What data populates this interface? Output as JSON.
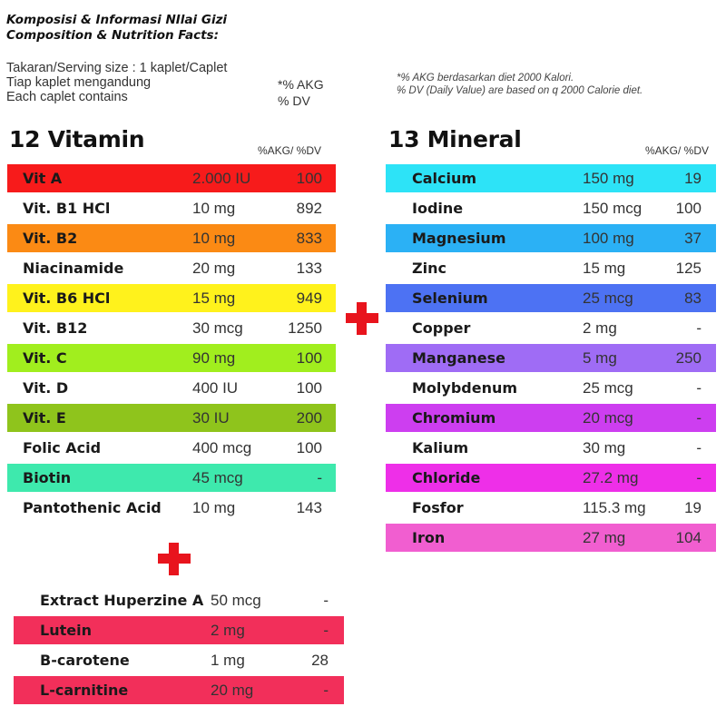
{
  "header": {
    "title_line1": "Komposisi & Informasi NIlai Gizi",
    "title_line2": "Composition & Nutrition Facts:"
  },
  "serving": {
    "line1": "Takaran/Serving size : 1 kaplet/Caplet",
    "line2": "Tiap kaplet mengandung",
    "line3": "Each caplet contains",
    "akg_label": "*% AKG",
    "dv_label": "% DV"
  },
  "footnote": {
    "line1": "*% AKG berdasarkan diet 2000 Kalori.",
    "line2": "% DV (Daily Value) are based on q 2000 Calorie diet."
  },
  "vitamins": {
    "title": "12 Vitamin",
    "col_head": "%AKG/ %DV",
    "rows": [
      {
        "name": "Vit A",
        "amount": "2.000 IU",
        "pct": "100",
        "color": "#f71b1b"
      },
      {
        "name": "Vit. B1 HCl",
        "amount": "10 mg",
        "pct": "892",
        "color": ""
      },
      {
        "name": "Vit. B2",
        "amount": "10 mg",
        "pct": "833",
        "color": "#fb8a14"
      },
      {
        "name": "Niacinamide",
        "amount": "20 mg",
        "pct": "133",
        "color": ""
      },
      {
        "name": "Vit. B6 HCl",
        "amount": "15 mg",
        "pct": "949",
        "color": "#fff21c"
      },
      {
        "name": "Vit. B12",
        "amount": "30 mcg",
        "pct": "1250",
        "color": ""
      },
      {
        "name": "Vit. C",
        "amount": "90 mg",
        "pct": "100",
        "color": "#a1ee1e"
      },
      {
        "name": "Vit. D",
        "amount": "400 IU",
        "pct": "100",
        "color": ""
      },
      {
        "name": "Vit. E",
        "amount": "30 IU",
        "pct": "200",
        "color": "#8fc41c"
      },
      {
        "name": "Folic Acid",
        "amount": "400 mcg",
        "pct": "100",
        "color": ""
      },
      {
        "name": "Biotin",
        "amount": "45 mcg",
        "pct": "-",
        "color": "#3ee9ad"
      },
      {
        "name": "Pantothenic Acid",
        "amount": "10 mg",
        "pct": "143",
        "color": ""
      }
    ]
  },
  "minerals": {
    "title": "13 Mineral",
    "col_head": "%AKG/ %DV",
    "rows": [
      {
        "name": "Calcium",
        "amount": "150 mg",
        "pct": "19",
        "color": "#2de3f7"
      },
      {
        "name": "Iodine",
        "amount": "150 mcg",
        "pct": "100",
        "color": ""
      },
      {
        "name": "Magnesium",
        "amount": "100 mg",
        "pct": "37",
        "color": "#2bb1f5"
      },
      {
        "name": "Zinc",
        "amount": "15 mg",
        "pct": "125",
        "color": ""
      },
      {
        "name": "Selenium",
        "amount": "25 mcg",
        "pct": "83",
        "color": "#4d72f3"
      },
      {
        "name": "Copper",
        "amount": "2 mg",
        "pct": "-",
        "color": ""
      },
      {
        "name": "Manganese",
        "amount": "5 mg",
        "pct": "250",
        "color": "#9f6cf5"
      },
      {
        "name": "Molybdenum",
        "amount": "25 mcg",
        "pct": "-",
        "color": ""
      },
      {
        "name": "Chromium",
        "amount": "20 mcg",
        "pct": "-",
        "color": "#cd3ef0"
      },
      {
        "name": "Kalium",
        "amount": "30 mg",
        "pct": "-",
        "color": ""
      },
      {
        "name": "Chloride",
        "amount": "27.2 mg",
        "pct": "-",
        "color": "#ee2fe8"
      },
      {
        "name": "Fosfor",
        "amount": "115.3 mg",
        "pct": "19",
        "color": ""
      },
      {
        "name": "Iron",
        "amount": "27 mg",
        "pct": "104",
        "color": "#f15ed0"
      }
    ]
  },
  "extras": {
    "rows": [
      {
        "name": "Extract Huperzine A",
        "amount": "50 mcg",
        "pct": "-",
        "color": ""
      },
      {
        "name": "Lutein",
        "amount": "2 mg",
        "pct": "-",
        "color": "#f22f5a"
      },
      {
        "name": "B-carotene",
        "amount": "1 mg",
        "pct": "28",
        "color": ""
      },
      {
        "name": "L-carnitine",
        "amount": "20 mg",
        "pct": "-",
        "color": "#f22f5a"
      }
    ]
  }
}
